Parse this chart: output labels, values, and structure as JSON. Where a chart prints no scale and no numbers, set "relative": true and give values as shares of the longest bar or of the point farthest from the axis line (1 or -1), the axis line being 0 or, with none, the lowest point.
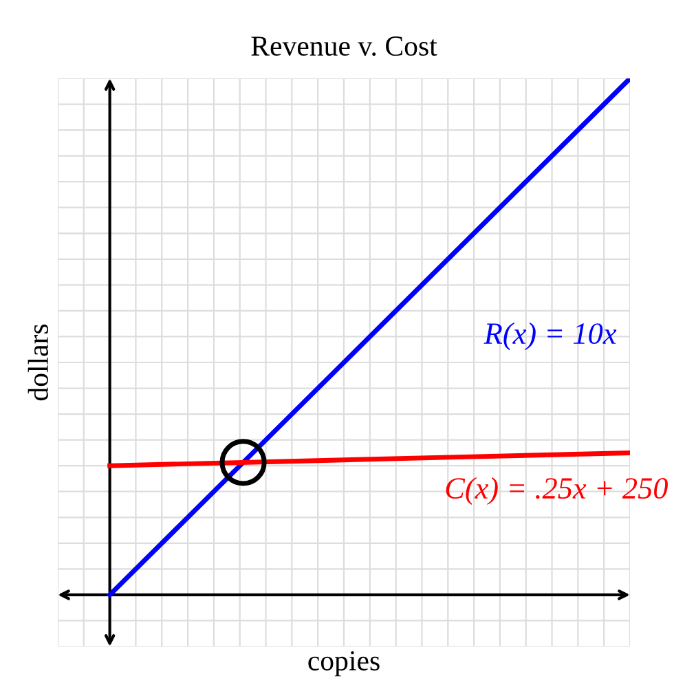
{
  "chart_data": {
    "type": "line",
    "title": "Revenue v. Cost",
    "xlabel": "copies",
    "ylabel": "dollars",
    "relative": true,
    "grid": true,
    "legend": false,
    "categories": [
      null,
      null,
      null,
      null
    ],
    "series": [
      {
        "name": "R(x) = 10x",
        "color": "#0000ff",
        "values": [
          0,
          0.3333,
          0.6667,
          1
        ]
      },
      {
        "name": "C(x) = .25x + 250",
        "color": "#ff0000",
        "values": [
          0.25,
          0.2583,
          0.2667,
          0.275
        ]
      }
    ]
  }
}
